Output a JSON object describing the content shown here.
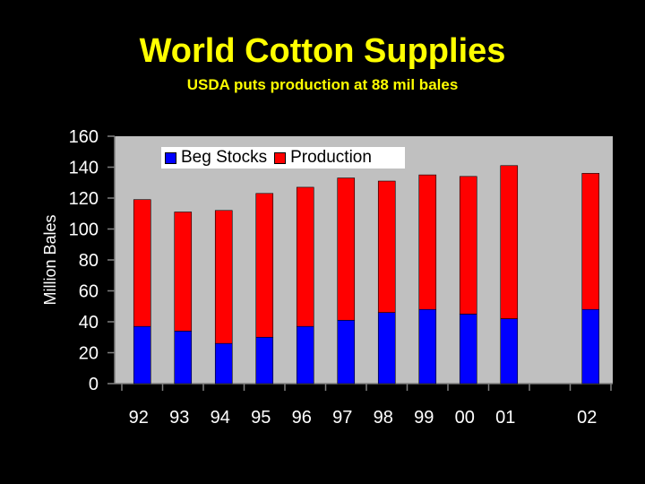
{
  "title": "World Cotton Supplies",
  "subtitle": "USDA puts production at 88 mil bales",
  "colors": {
    "background": "#000000",
    "title": "#ffff00",
    "plot_background": "#c0c0c0",
    "beg_stocks": "#0000ff",
    "production": "#ff0000"
  },
  "chart_data": {
    "type": "bar",
    "stacked": true,
    "ylabel": "Million Bales",
    "xlabel": "",
    "ylim": [
      0,
      160
    ],
    "y_ticks": [
      "0",
      "20",
      "40",
      "60",
      "80",
      "100",
      "120",
      "140",
      "160"
    ],
    "categories": [
      "92",
      "93",
      "94",
      "95",
      "96",
      "97",
      "98",
      "99",
      "00",
      "01",
      "",
      "02"
    ],
    "series": [
      {
        "name": "Beg Stocks",
        "color": "#0000ff",
        "values": [
          37,
          34,
          26,
          30,
          37,
          41,
          46,
          48,
          45,
          42,
          null,
          48
        ]
      },
      {
        "name": "Production",
        "color": "#ff0000",
        "values": [
          82,
          77,
          86,
          93,
          90,
          92,
          85,
          87,
          89,
          99,
          null,
          88
        ]
      }
    ],
    "legend_position": "top-left",
    "grid": false
  }
}
